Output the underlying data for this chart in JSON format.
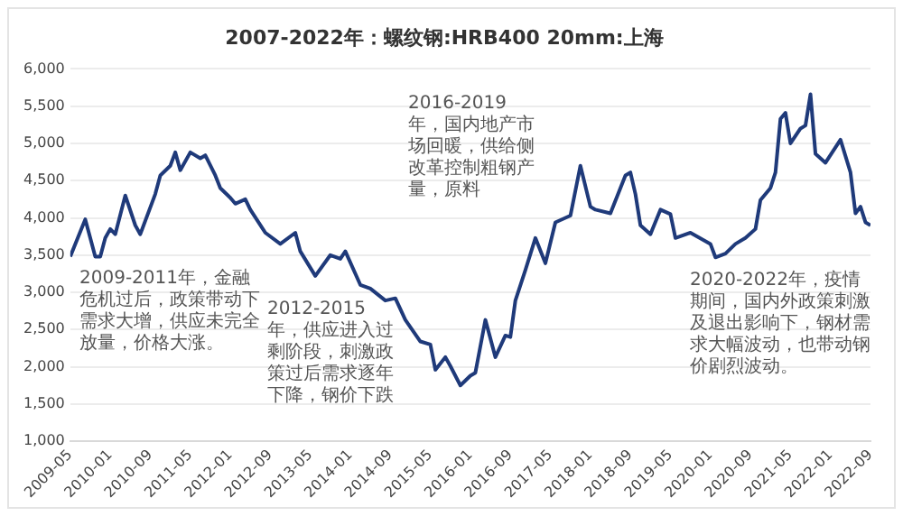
{
  "chart_data": {
    "type": "line",
    "title": "2007-2022年：螺纹钢:HRB400 20mm:上海",
    "x": [
      "2009-05",
      "2009-08",
      "2009-10",
      "2009-11",
      "2009-12",
      "2010-01",
      "2010-02",
      "2010-04",
      "2010-06",
      "2010-07",
      "2010-10",
      "2010-11",
      "2011-01",
      "2011-02",
      "2011-03",
      "2011-05",
      "2011-07",
      "2011-08",
      "2011-10",
      "2011-11",
      "2012-01",
      "2012-02",
      "2012-04",
      "2012-05",
      "2012-08",
      "2012-11",
      "2013-02",
      "2013-03",
      "2013-06",
      "2013-09",
      "2013-11",
      "2013-12",
      "2014-03",
      "2014-05",
      "2014-08",
      "2014-10",
      "2014-12",
      "2015-03",
      "2015-05",
      "2015-06",
      "2015-08",
      "2015-09",
      "2015-11",
      "2016-01",
      "2016-02",
      "2016-04",
      "2016-06",
      "2016-08",
      "2016-09",
      "2016-10",
      "2016-12",
      "2017-02",
      "2017-04",
      "2017-06",
      "2017-09",
      "2017-11",
      "2018-01",
      "2018-02",
      "2018-05",
      "2018-08",
      "2018-09",
      "2018-10",
      "2018-11",
      "2019-01",
      "2019-03",
      "2019-05",
      "2019-06",
      "2019-09",
      "2020-01",
      "2020-02",
      "2020-04",
      "2020-06",
      "2020-08",
      "2020-10",
      "2020-11",
      "2021-01",
      "2021-02",
      "2021-03",
      "2021-04",
      "2021-05",
      "2021-07",
      "2021-08",
      "2021-09",
      "2021-10",
      "2021-12",
      "2022-03",
      "2022-05",
      "2022-06",
      "2022-07",
      "2022-08",
      "2022-09"
    ],
    "series": [
      {
        "color": "#1f3a7a",
        "values": [
          3480,
          3980,
          3480,
          3480,
          3730,
          3850,
          3780,
          4300,
          3900,
          3780,
          4320,
          4570,
          4700,
          4880,
          4640,
          4880,
          4800,
          4840,
          4570,
          4400,
          4270,
          4190,
          4250,
          4110,
          3800,
          3650,
          3800,
          3550,
          3220,
          3500,
          3450,
          3550,
          3100,
          3050,
          2890,
          2920,
          2630,
          2340,
          2300,
          1960,
          2130,
          2010,
          1750,
          1880,
          1920,
          2630,
          2130,
          2420,
          2400,
          2890,
          3300,
          3730,
          3390,
          3940,
          4030,
          4700,
          4150,
          4110,
          4060,
          4570,
          4610,
          4320,
          3900,
          3780,
          4110,
          4050,
          3730,
          3800,
          3650,
          3470,
          3520,
          3650,
          3730,
          3850,
          4240,
          4400,
          4610,
          5330,
          5410,
          5000,
          5200,
          5240,
          5660,
          4860,
          4740,
          5050,
          4610,
          4060,
          4150,
          3940,
          3900
        ]
      }
    ],
    "xlim": [
      "2009-05",
      "2022-09"
    ],
    "xticks": [
      "2009-05",
      "2010-01",
      "2010-09",
      "2011-05",
      "2012-01",
      "2012-09",
      "2013-05",
      "2014-01",
      "2014-09",
      "2015-05",
      "2016-01",
      "2016-09",
      "2017-05",
      "2018-01",
      "2018-09",
      "2019-05",
      "2020-01",
      "2020-09",
      "2021-05",
      "2022-01",
      "2022-09"
    ],
    "ylim": [
      1000,
      6000
    ],
    "yticks": [
      {
        "value": 1000,
        "label": "1,000"
      },
      {
        "value": 1500,
        "label": "1,500"
      },
      {
        "value": 2000,
        "label": "2,000"
      },
      {
        "value": 2500,
        "label": "2,500"
      },
      {
        "value": 3000,
        "label": "3,000"
      },
      {
        "value": 3500,
        "label": "3,500"
      },
      {
        "value": 4000,
        "label": "4,000"
      },
      {
        "value": 4500,
        "label": "4,500"
      },
      {
        "value": 5000,
        "label": "5,000"
      },
      {
        "value": 5500,
        "label": "5,500"
      },
      {
        "value": 6000,
        "label": "6,000"
      }
    ],
    "grid": "y",
    "legend": false,
    "marker": "none",
    "line_style": "solid",
    "annotations": [
      "2009-2011年，金融危机过后，政策带动下需求大增，供应未完全放量，价格大涨。",
      "2012-2015年，供应进入过剩阶段，刺激政策过后需求逐年下降，钢价下跌",
      "2016-2019年，国内地产市场回暖，供给侧改革控制粗钢产量，原料",
      "2020-2022年，疫情期间，国内外政策刺激及退出影响下，钢材需求大幅波动，也带动钢价剧烈波动。"
    ]
  }
}
